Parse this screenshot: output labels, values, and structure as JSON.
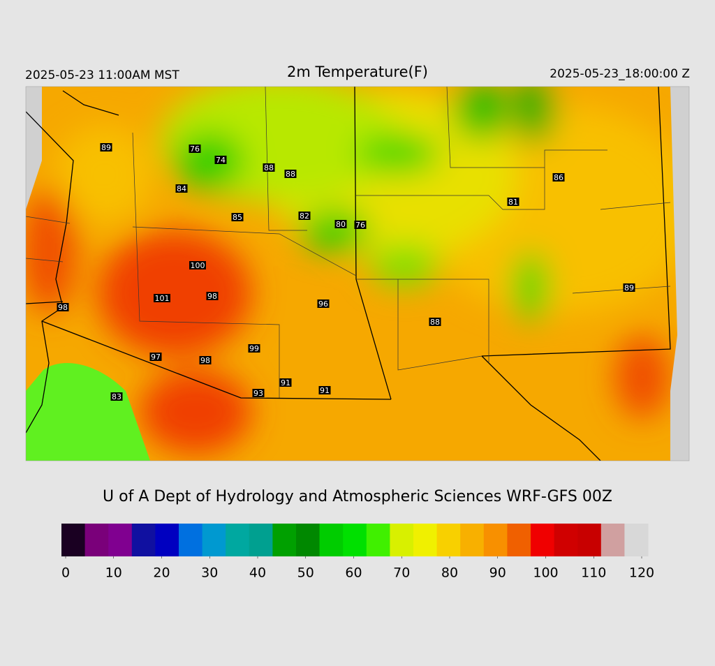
{
  "header": {
    "left": "2025-05-23 11:00AM MST",
    "title": "2m Temperature(F)",
    "right": "2025-05-23_18:00:00 Z"
  },
  "map": {
    "station_values": [
      89,
      76,
      74,
      88,
      88,
      84,
      86,
      81,
      85,
      82,
      80,
      76,
      100,
      101,
      98,
      96,
      98,
      88,
      89,
      99,
      97,
      98,
      91,
      91,
      93,
      83
    ]
  },
  "footer": {
    "credit": "U of A Dept of Hydrology and Atmospheric Sciences WRF-GFS 00Z"
  },
  "colorbar": {
    "ticks": [
      0,
      10,
      20,
      30,
      40,
      50,
      60,
      70,
      80,
      90,
      100,
      110,
      120
    ],
    "colors": [
      "#1a0022",
      "#7a007a",
      "#800090",
      "#1010a0",
      "#0000c0",
      "#0070e0",
      "#0099d0",
      "#00a8a0",
      "#00a090",
      "#00a000",
      "#008800",
      "#00cc00",
      "#00e000",
      "#40f000",
      "#d8f000",
      "#f0f000",
      "#f8d000",
      "#f8b000",
      "#f89000",
      "#f06000",
      "#f00000",
      "#d00000",
      "#c80000",
      "#d0a0a0",
      "#d8d8d8"
    ]
  }
}
